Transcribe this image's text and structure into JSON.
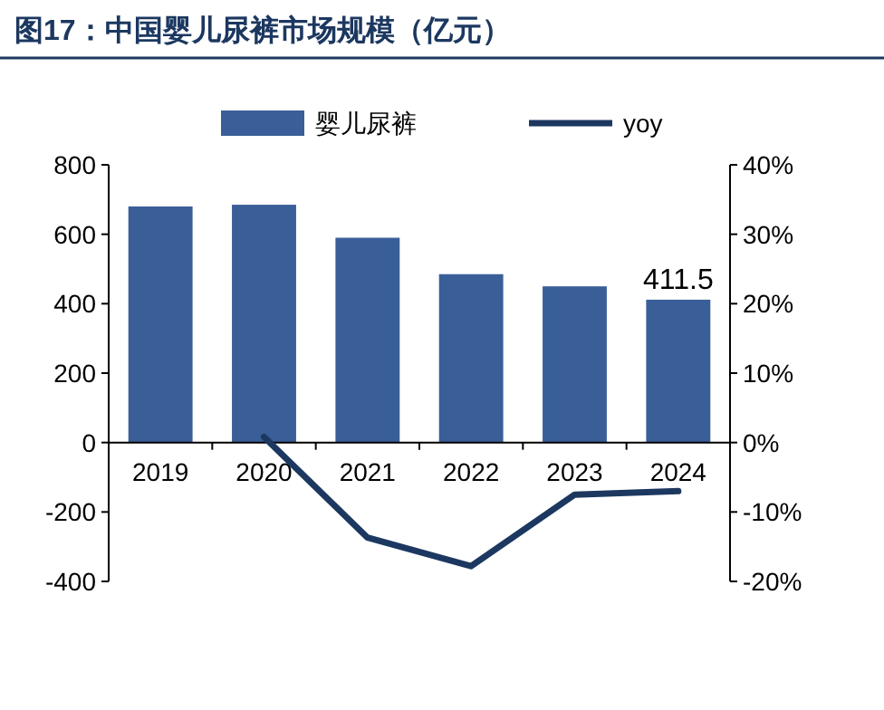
{
  "chart_data": {
    "type": "bar",
    "title": "图17：中国婴儿尿裤市场规模（亿元）",
    "categories": [
      "2019",
      "2020",
      "2021",
      "2022",
      "2023",
      "2024"
    ],
    "series": [
      {
        "name": "婴儿尿裤",
        "color": "#3a5f98",
        "values": [
          680,
          685,
          590,
          485,
          450,
          411.5
        ],
        "value_labels": [
          null,
          null,
          null,
          null,
          null,
          "411.5"
        ]
      },
      {
        "name": "yoy",
        "type": "line",
        "axis": "y2",
        "color": "#1c3860",
        "values": [
          null,
          0.8,
          -13.7,
          -17.8,
          -7.5,
          -7.0
        ]
      }
    ],
    "ylim": [
      -400,
      800
    ],
    "yticks": [
      -400,
      -200,
      0,
      200,
      400,
      600,
      800
    ],
    "y2lim": [
      -20,
      40
    ],
    "y2ticks": [
      {
        "value": -20,
        "label": "-20%"
      },
      {
        "value": -10,
        "label": "-10%"
      },
      {
        "value": 0,
        "label": "0%"
      },
      {
        "value": 10,
        "label": "10%"
      },
      {
        "value": 20,
        "label": "20%"
      },
      {
        "value": 30,
        "label": "30%"
      },
      {
        "value": 40,
        "label": "40%"
      }
    ],
    "legend": "top"
  }
}
